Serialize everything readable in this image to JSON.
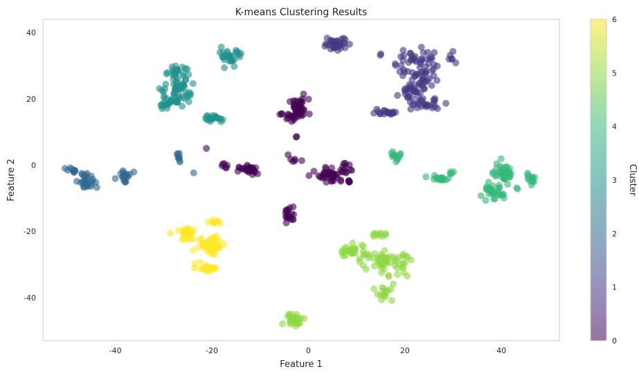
{
  "chart_data": {
    "type": "scatter",
    "title": "K-means Clustering Results",
    "xlabel": "Feature 1",
    "ylabel": "Feature 2",
    "xlim": [
      -55,
      52
    ],
    "ylim": [
      -53,
      44
    ],
    "x_ticks": [
      -40,
      -20,
      0,
      20,
      40
    ],
    "y_ticks": [
      -40,
      -20,
      0,
      20,
      40
    ],
    "grid": false,
    "point_alpha": 0.6,
    "colorbar": {
      "label": "Cluster",
      "range": [
        0,
        6
      ],
      "ticks": [
        0,
        1,
        2,
        3,
        4,
        5,
        6
      ],
      "colormap": "viridis",
      "colors": [
        "#440154",
        "#443983",
        "#31688e",
        "#21918c",
        "#35b779",
        "#90d743",
        "#fde725"
      ]
    },
    "clusters": [
      {
        "label": 0,
        "color": "#440154",
        "blobs": [
          {
            "x": -2,
            "y": 17,
            "sx": 1.0,
            "sy": 1.5,
            "n": 45
          },
          {
            "x": -3.5,
            "y": 14,
            "sx": 0.6,
            "sy": 0.8,
            "n": 10
          },
          {
            "x": -5.5,
            "y": 15.8,
            "sx": 0.3,
            "sy": 0.3,
            "n": 3
          },
          {
            "x": -2.5,
            "y": 8.3,
            "sx": 0.2,
            "sy": 0.2,
            "n": 2
          },
          {
            "x": -3,
            "y": 2,
            "sx": 0.7,
            "sy": 0.8,
            "n": 6
          },
          {
            "x": -17.5,
            "y": 0,
            "sx": 0.3,
            "sy": 0.4,
            "n": 6
          },
          {
            "x": -12.5,
            "y": -1.5,
            "sx": 1.0,
            "sy": 0.7,
            "n": 28
          },
          {
            "x": -21,
            "y": 5.3,
            "sx": 0.2,
            "sy": 0.2,
            "n": 1
          },
          {
            "x": 5,
            "y": -3,
            "sx": 1.5,
            "sy": 1.2,
            "n": 40
          },
          {
            "x": 8,
            "y": 0,
            "sx": 0.5,
            "sy": 1.0,
            "n": 8
          },
          {
            "x": 8.5,
            "y": -5,
            "sx": 0.5,
            "sy": 0.4,
            "n": 6
          },
          {
            "x": -4,
            "y": -15,
            "sx": 0.6,
            "sy": 1.2,
            "n": 18
          }
        ]
      },
      {
        "label": 1,
        "color": "#443983",
        "blobs": [
          {
            "x": 6,
            "y": 37,
            "sx": 1.5,
            "sy": 1.2,
            "n": 35
          },
          {
            "x": 22,
            "y": 31,
            "sx": 2.0,
            "sy": 2.5,
            "n": 45
          },
          {
            "x": 23,
            "y": 25,
            "sx": 1.5,
            "sy": 2.0,
            "n": 30
          },
          {
            "x": 21,
            "y": 22,
            "sx": 1.5,
            "sy": 1.0,
            "n": 15
          },
          {
            "x": 24,
            "y": 18.5,
            "sx": 2.0,
            "sy": 0.8,
            "n": 25
          },
          {
            "x": 16,
            "y": 15.8,
            "sx": 1.5,
            "sy": 0.4,
            "n": 18
          },
          {
            "x": 15,
            "y": 33.5,
            "sx": 0.3,
            "sy": 0.3,
            "n": 2
          },
          {
            "x": 29.5,
            "y": 32,
            "sx": 0.4,
            "sy": 1.0,
            "n": 6
          }
        ]
      },
      {
        "label": 2,
        "color": "#31688e",
        "blobs": [
          {
            "x": -49,
            "y": -1.5,
            "sx": 0.6,
            "sy": 0.6,
            "n": 10
          },
          {
            "x": -46,
            "y": -5,
            "sx": 0.8,
            "sy": 1.5,
            "n": 28
          },
          {
            "x": -38,
            "y": -3,
            "sx": 0.8,
            "sy": 0.8,
            "n": 18
          },
          {
            "x": -27,
            "y": 2.5,
            "sx": 0.4,
            "sy": 1.0,
            "n": 8
          },
          {
            "x": -23.5,
            "y": -2.3,
            "sx": 0.2,
            "sy": 0.2,
            "n": 1
          }
        ]
      },
      {
        "label": 3,
        "color": "#21918c",
        "blobs": [
          {
            "x": -28,
            "y": 28,
            "sx": 1.0,
            "sy": 1.0,
            "n": 15
          },
          {
            "x": -27,
            "y": 24,
            "sx": 1.2,
            "sy": 2.0,
            "n": 40
          },
          {
            "x": -28.5,
            "y": 19,
            "sx": 1.5,
            "sy": 0.8,
            "n": 30
          },
          {
            "x": -25,
            "y": 21,
            "sx": 0.8,
            "sy": 0.5,
            "n": 6
          },
          {
            "x": -30.5,
            "y": 23,
            "sx": 0.3,
            "sy": 0.8,
            "n": 4
          },
          {
            "x": -25.5,
            "y": 29.5,
            "sx": 0.3,
            "sy": 0.3,
            "n": 2
          },
          {
            "x": -16,
            "y": 33,
            "sx": 1.2,
            "sy": 1.2,
            "n": 30
          },
          {
            "x": -19.5,
            "y": 14,
            "sx": 1.0,
            "sy": 0.5,
            "n": 20
          }
        ]
      },
      {
        "label": 4,
        "color": "#35b779",
        "blobs": [
          {
            "x": 18,
            "y": 3.2,
            "sx": 0.7,
            "sy": 0.4,
            "n": 10
          },
          {
            "x": 18.5,
            "y": 1.5,
            "sx": 0.3,
            "sy": 0.4,
            "n": 3
          },
          {
            "x": 27.5,
            "y": -4,
            "sx": 1.0,
            "sy": 0.6,
            "n": 15
          },
          {
            "x": 29.5,
            "y": -2.5,
            "sx": 0.4,
            "sy": 0.4,
            "n": 4
          },
          {
            "x": 24.5,
            "y": -3.5,
            "sx": 0.2,
            "sy": 0.2,
            "n": 1
          },
          {
            "x": 40.5,
            "y": -3,
            "sx": 1.0,
            "sy": 1.2,
            "n": 40
          },
          {
            "x": 38,
            "y": -8.5,
            "sx": 1.2,
            "sy": 1.2,
            "n": 30
          },
          {
            "x": 46,
            "y": -4.5,
            "sx": 0.6,
            "sy": 0.8,
            "n": 12
          },
          {
            "x": 43.5,
            "y": -6.5,
            "sx": 0.3,
            "sy": 0.3,
            "n": 2
          },
          {
            "x": 40,
            "y": 1.5,
            "sx": 0.2,
            "sy": 0.2,
            "n": 1
          }
        ]
      },
      {
        "label": 5,
        "color": "#90d743",
        "blobs": [
          {
            "x": 14,
            "y": -21,
            "sx": 1.0,
            "sy": 0.3,
            "n": 10
          },
          {
            "x": 9,
            "y": -26,
            "sx": 1.5,
            "sy": 1.2,
            "n": 25
          },
          {
            "x": 16,
            "y": -28.5,
            "sx": 2.5,
            "sy": 1.2,
            "n": 45
          },
          {
            "x": 19,
            "y": -31,
            "sx": 0.8,
            "sy": 1.2,
            "n": 10
          },
          {
            "x": 16,
            "y": -38.5,
            "sx": 1.0,
            "sy": 1.5,
            "n": 15
          },
          {
            "x": 16.5,
            "y": -33.5,
            "sx": 0.3,
            "sy": 0.3,
            "n": 2
          },
          {
            "x": -3,
            "y": -46.5,
            "sx": 1.0,
            "sy": 0.8,
            "n": 30
          }
        ]
      },
      {
        "label": 6,
        "color": "#fde725",
        "blobs": [
          {
            "x": -25,
            "y": -21,
            "sx": 1.0,
            "sy": 1.5,
            "n": 25
          },
          {
            "x": -20,
            "y": -24,
            "sx": 1.5,
            "sy": 1.5,
            "n": 40
          },
          {
            "x": -19.5,
            "y": -17,
            "sx": 0.6,
            "sy": 0.3,
            "n": 8
          },
          {
            "x": -21,
            "y": -31,
            "sx": 1.2,
            "sy": 0.6,
            "n": 20
          },
          {
            "x": -28.5,
            "y": -20.5,
            "sx": 0.2,
            "sy": 0.2,
            "n": 1
          }
        ]
      }
    ]
  }
}
